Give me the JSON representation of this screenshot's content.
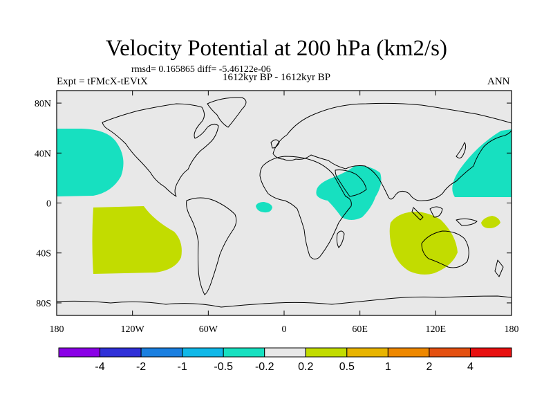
{
  "chart_data": {
    "type": "heatmap",
    "title": "Velocity Potential at 200 hPa (km2/s)",
    "stats_text": "rmsd= 0.165865 diff= -5.46122e-06",
    "left_label": "Expt = tFMcX-tEVtX",
    "center_label": "1612kyr BP - 1612kyr BP",
    "right_label": "ANN",
    "projection": "cylindrical equidistant",
    "x_range": [
      -180,
      180
    ],
    "y_range": [
      -90,
      90
    ],
    "x_ticks": [
      {
        "value": -180,
        "label": "180"
      },
      {
        "value": -120,
        "label": "120W"
      },
      {
        "value": -60,
        "label": "60W"
      },
      {
        "value": 0,
        "label": "0"
      },
      {
        "value": 60,
        "label": "60E"
      },
      {
        "value": 120,
        "label": "120E"
      },
      {
        "value": 180,
        "label": "180"
      }
    ],
    "y_ticks": [
      {
        "value": 80,
        "label": "80N"
      },
      {
        "value": 40,
        "label": "40N"
      },
      {
        "value": 0,
        "label": "0"
      },
      {
        "value": -40,
        "label": "40S"
      },
      {
        "value": -80,
        "label": "80S"
      }
    ],
    "background_class": "-0.2 to 0.2",
    "regions": [
      {
        "name": "North Pacific (west)",
        "class": "-0.5 to -0.2",
        "lon_range": [
          -180,
          -137
        ],
        "lat_range": [
          12,
          60
        ]
      },
      {
        "name": "North Pacific (east)",
        "class": "-0.5 to -0.2",
        "lon_range": [
          135,
          180
        ],
        "lat_range": [
          7,
          60
        ]
      },
      {
        "name": "Arabian Sea / East Africa",
        "class": "-0.5 to -0.2",
        "lon_range": [
          26,
          78
        ],
        "lat_range": [
          -19,
          30
        ]
      },
      {
        "name": "Tropical Atlantic",
        "class": "-0.5 to -0.2",
        "lon_range": [
          -22,
          -9
        ],
        "lat_range": [
          -5,
          2
        ]
      },
      {
        "name": "Southeast Pacific",
        "class": "0.2 to 0.5",
        "lon_range": [
          -150,
          -81
        ],
        "lat_range": [
          -52,
          -2
        ]
      },
      {
        "name": "Indian Ocean / Australia",
        "class": "0.2 to 0.5",
        "lon_range": [
          85,
          144
        ],
        "lat_range": [
          -57,
          -11
        ]
      },
      {
        "name": "Southwest Pacific",
        "class": "0.2 to 0.5",
        "lon_range": [
          154,
          170
        ],
        "lat_range": [
          -19,
          -8
        ]
      }
    ],
    "colorbar": {
      "colors": [
        "#8a00e6",
        "#3030d8",
        "#1a7fe0",
        "#10b8e8",
        "#17e0c0",
        "#e8e8e8",
        "#c2dc00",
        "#e8b400",
        "#ee8800",
        "#e45010",
        "#e81010"
      ],
      "labels": [
        "-4",
        "-2",
        "-1",
        "-0.5",
        "-0.2",
        "0.2",
        "0.5",
        "1",
        "2",
        "4"
      ]
    }
  }
}
